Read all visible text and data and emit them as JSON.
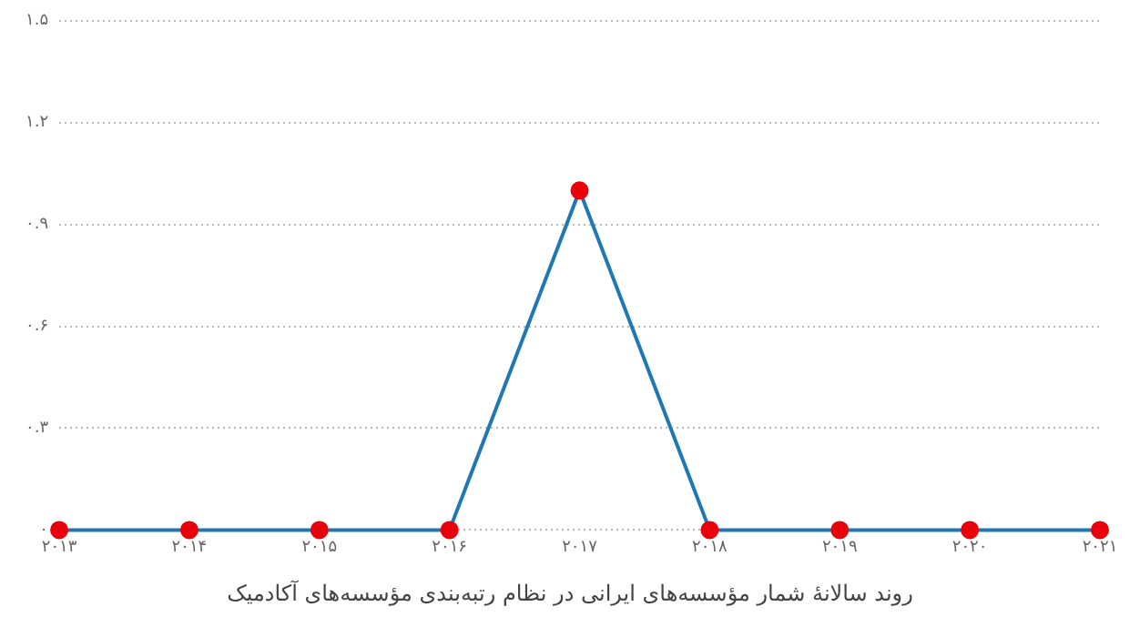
{
  "chart_data": {
    "type": "line",
    "categories": [
      "۲۰۱۳",
      "۲۰۱۴",
      "۲۰۱۵",
      "۲۰۱۶",
      "۲۰۱۷",
      "۲۰۱۸",
      "۲۰۱۹",
      "۲۰۲۰",
      "۲۰۲۱"
    ],
    "series": [
      {
        "color": "#1f77b4",
        "values": [
          0,
          0,
          0,
          0,
          1,
          0,
          0,
          0,
          0
        ]
      }
    ],
    "ylim": [
      0,
      1.5
    ],
    "yticks": [
      {
        "value": 0,
        "label": "۰"
      },
      {
        "value": 0.3,
        "label": "۰.۳"
      },
      {
        "value": 0.6,
        "label": "۰.۶"
      },
      {
        "value": 0.9,
        "label": "۰.۹"
      },
      {
        "value": 1.2,
        "label": "۱.۲"
      },
      {
        "value": 1.5,
        "label": "۱.۵"
      }
    ],
    "grid": "y",
    "marker": "circle",
    "line_style": "solid",
    "legend": false,
    "annotations": [
      "روند سالانهٔ شمار مؤسسه‌های ایرانی در نظام رتبه‌بندی مؤسسه‌های آکادمیک"
    ]
  }
}
